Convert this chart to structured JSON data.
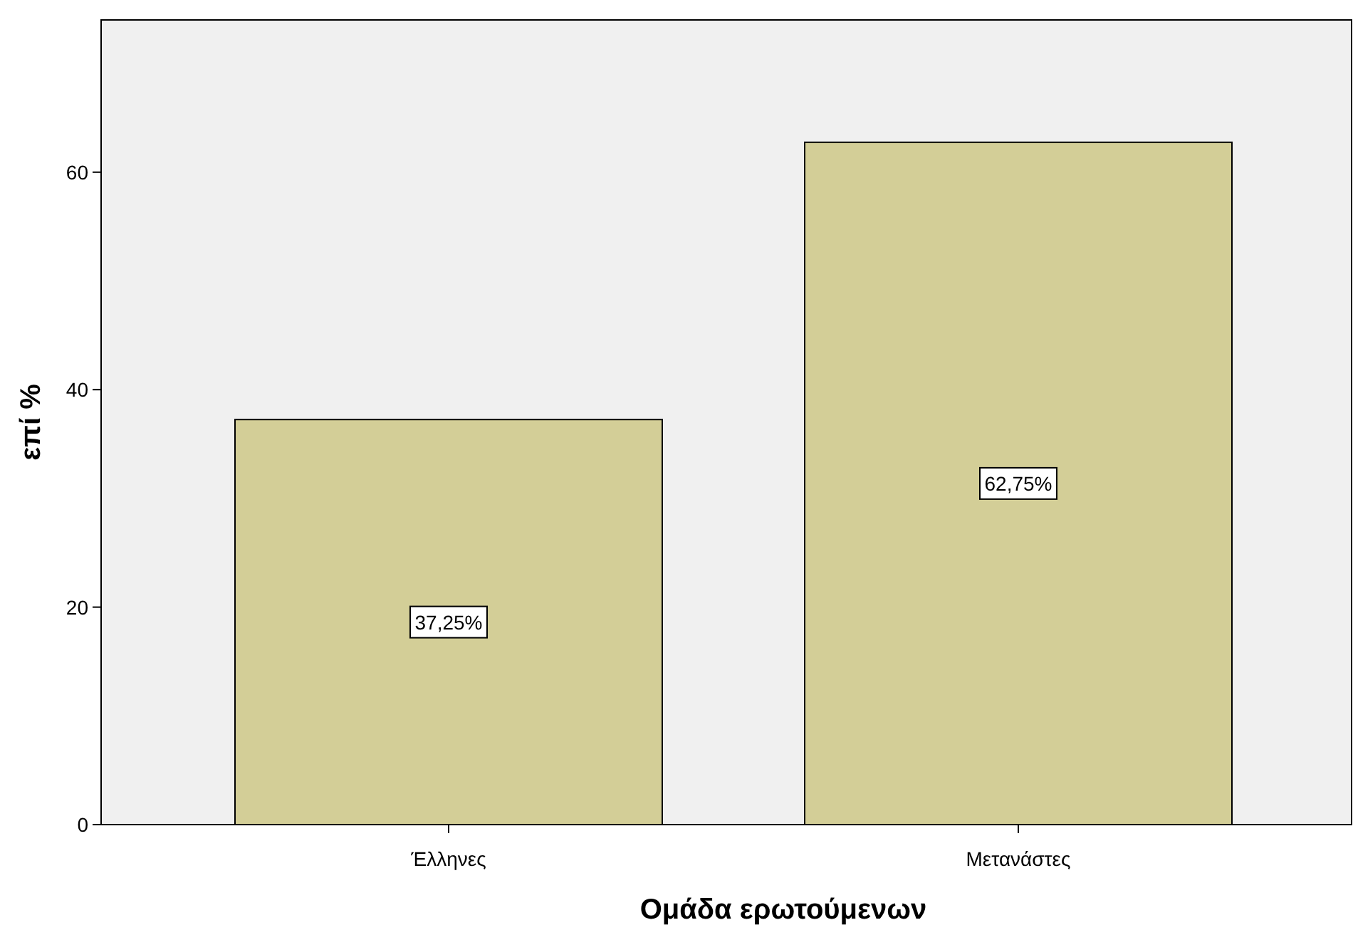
{
  "chart_data": {
    "type": "bar",
    "xlabel": "Ομάδα ερωτούμενων",
    "ylabel": "επί %",
    "categories": [
      "Έλληνες",
      "Μετανάστες"
    ],
    "values": [
      37.25,
      62.75
    ],
    "value_labels": [
      "37,25%",
      "62,75%"
    ],
    "color": "#d3ce97",
    "ylim": [
      0,
      74
    ],
    "yticks": [
      0,
      20,
      40,
      60
    ],
    "grid": false
  }
}
